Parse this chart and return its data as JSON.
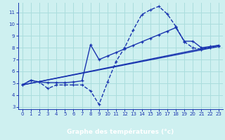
{
  "bg_color": "#cef0f0",
  "grid_color": "#aadddd",
  "line_color": "#1a35b0",
  "xlabel_bg": "#1a35b0",
  "xlabel_text": "#ffffff",
  "xlim": [
    -0.5,
    23.5
  ],
  "ylim": [
    2.8,
    11.8
  ],
  "xticks": [
    0,
    1,
    2,
    3,
    4,
    5,
    6,
    7,
    8,
    9,
    10,
    11,
    12,
    13,
    14,
    15,
    16,
    17,
    18,
    19,
    20,
    21,
    22,
    23
  ],
  "yticks": [
    3,
    4,
    5,
    6,
    7,
    8,
    9,
    10,
    11
  ],
  "xlabel": "Graphe des températures (°c)",
  "line1_x": [
    0,
    1,
    2,
    3,
    4,
    5,
    6,
    7,
    8,
    9,
    10,
    11,
    12,
    13,
    14,
    15,
    16,
    17,
    18,
    19,
    20,
    21,
    22,
    23
  ],
  "line1_y": [
    4.85,
    5.25,
    5.1,
    4.55,
    4.85,
    4.85,
    4.85,
    4.85,
    4.35,
    3.2,
    5.1,
    6.85,
    8.0,
    9.5,
    10.8,
    11.2,
    11.5,
    10.85,
    9.8,
    8.5,
    8.0,
    7.85,
    8.0,
    8.1
  ],
  "line2_x": [
    0,
    1,
    2,
    3,
    4,
    5,
    6,
    7,
    8,
    9,
    10,
    11,
    12,
    13,
    14,
    15,
    16,
    17,
    18,
    19,
    20,
    21,
    22,
    23
  ],
  "line2_y": [
    4.85,
    5.25,
    5.1,
    5.05,
    5.05,
    5.05,
    5.1,
    5.2,
    8.25,
    7.0,
    7.3,
    7.6,
    7.9,
    8.2,
    8.5,
    8.8,
    9.1,
    9.4,
    9.7,
    8.55,
    8.55,
    8.0,
    8.1,
    8.2
  ],
  "line3_x": [
    0,
    23
  ],
  "line3_y": [
    4.85,
    8.1
  ],
  "line4_x": [
    0,
    23
  ],
  "line4_y": [
    4.85,
    8.2
  ],
  "marker_size": 3.5,
  "line_width": 1.0
}
